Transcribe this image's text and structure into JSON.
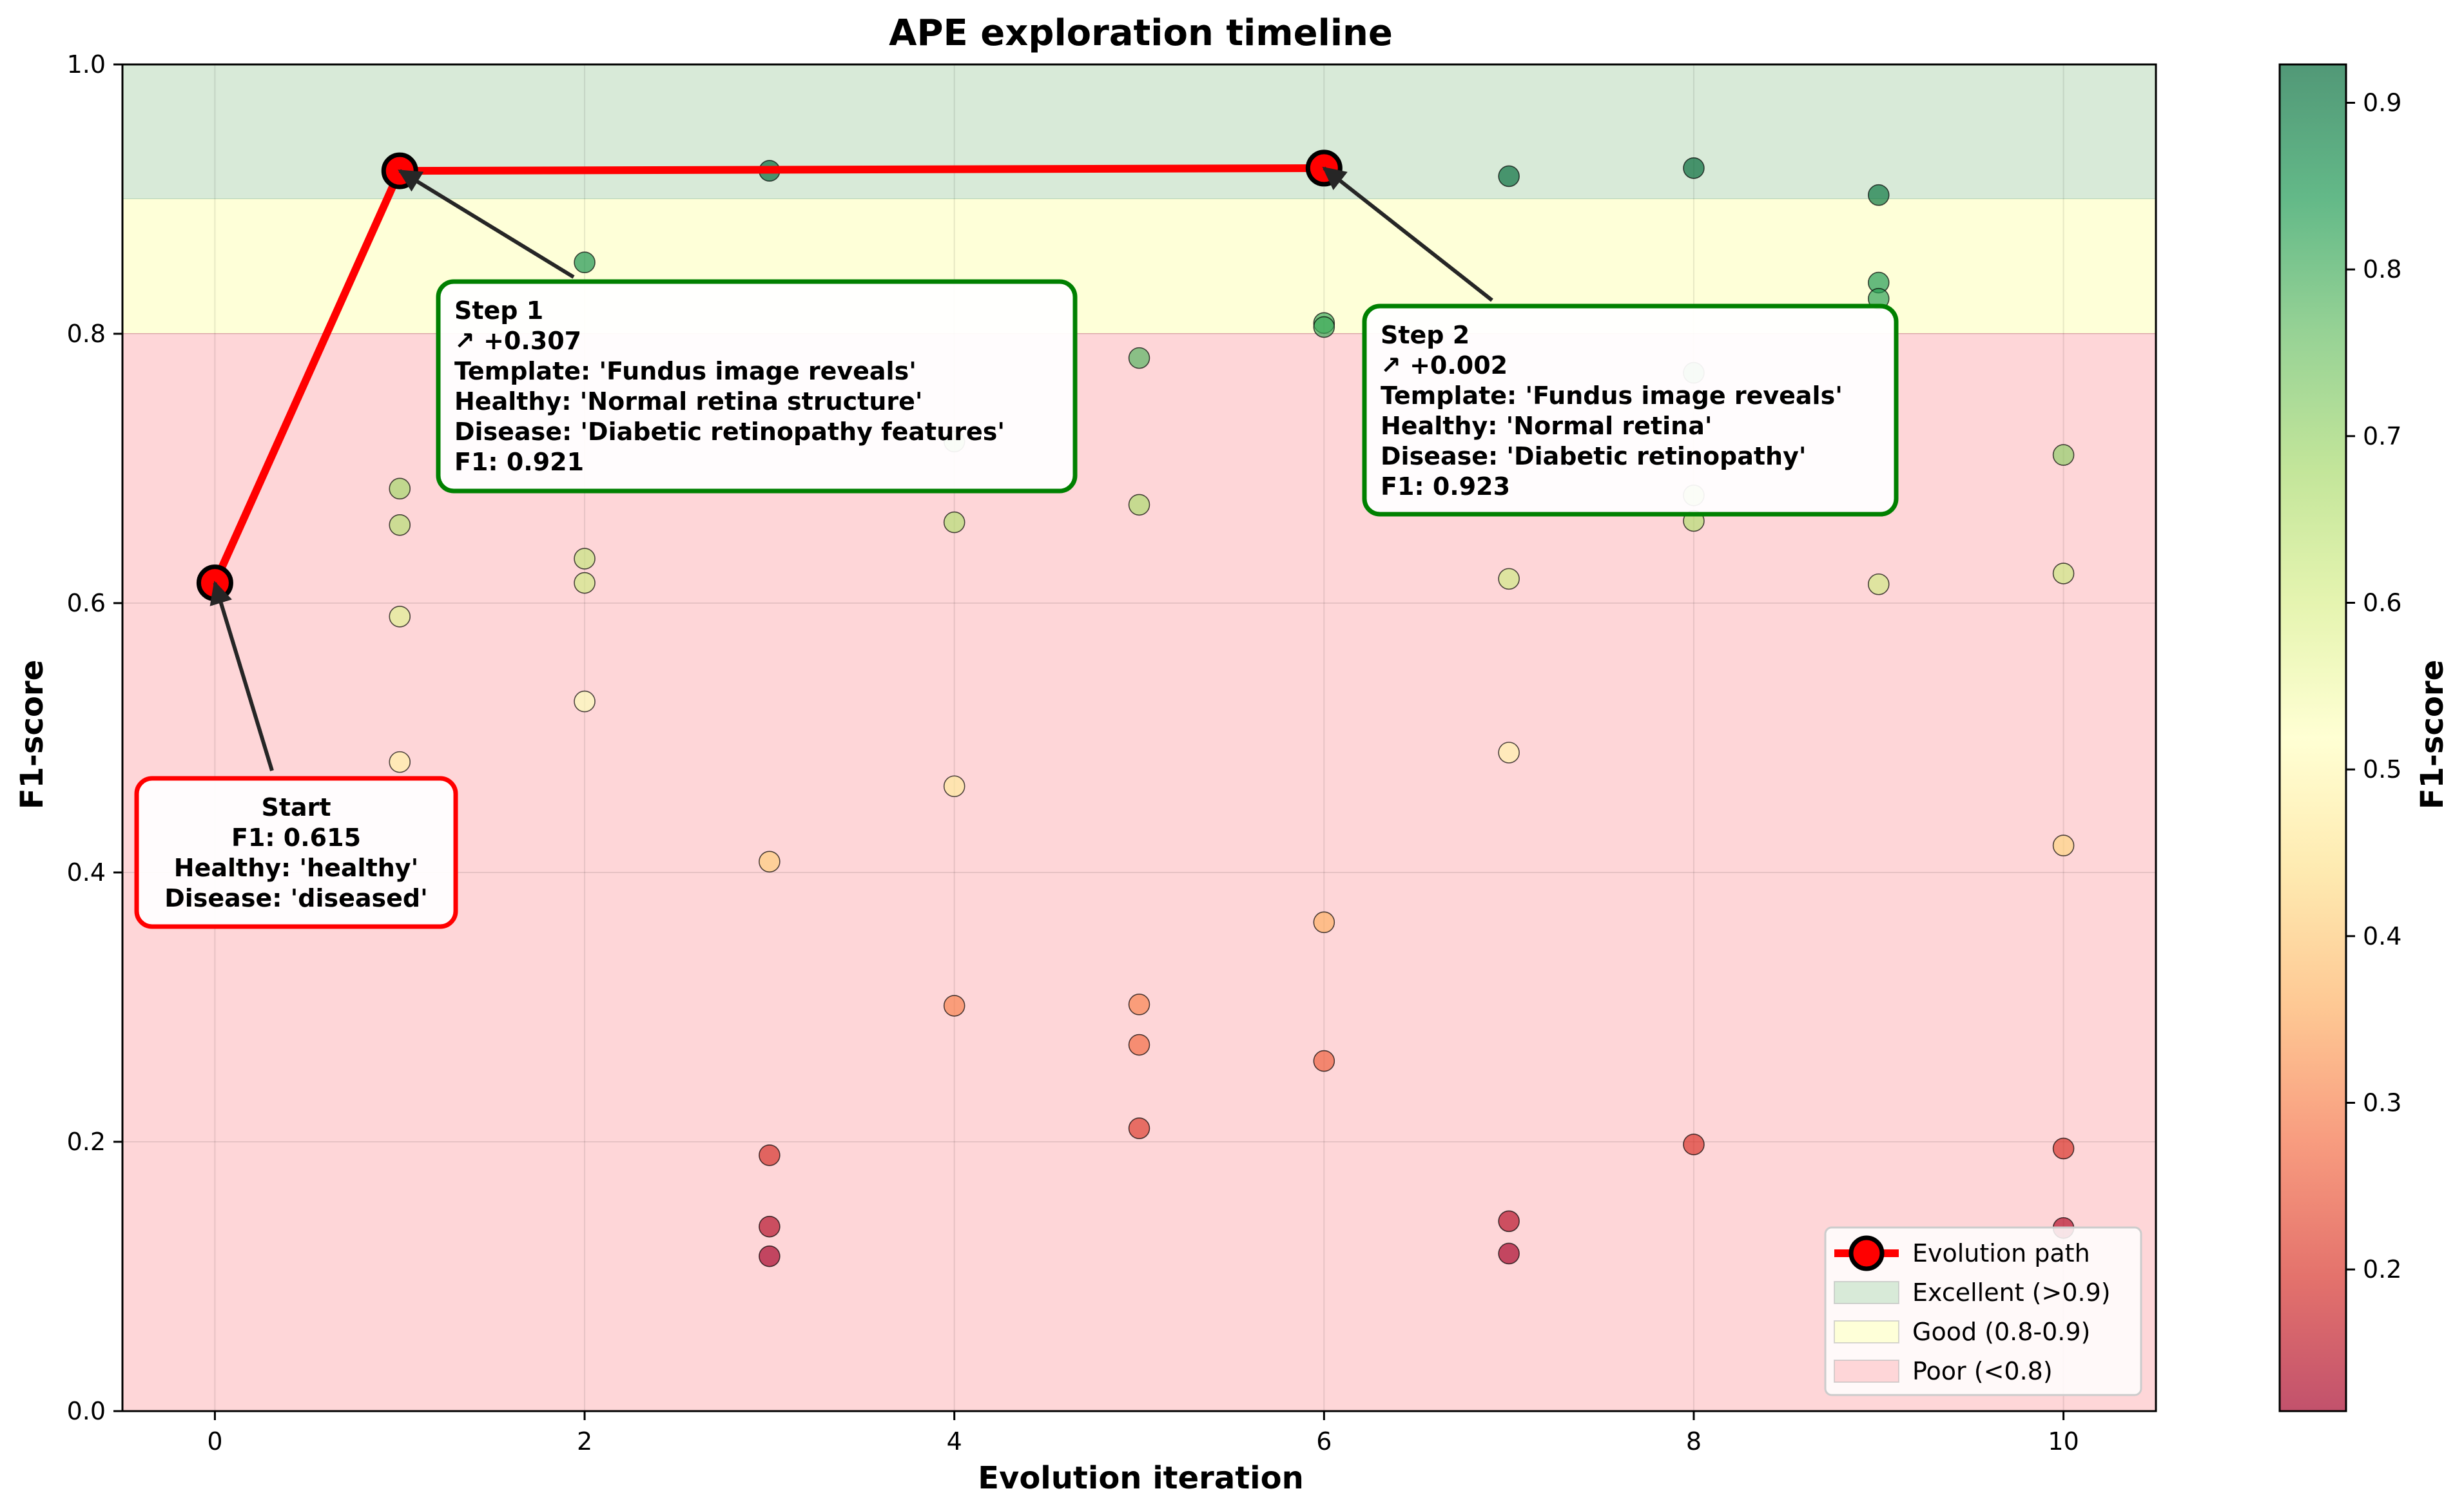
{
  "chart_data": {
    "type": "scatter",
    "title": "APE exploration timeline",
    "xlabel": "Evolution iteration",
    "ylabel": "F1-score",
    "xlim": [
      -0.5,
      10.5
    ],
    "ylim": [
      0.0,
      1.0
    ],
    "xticks": [
      "0",
      "2",
      "4",
      "6",
      "8",
      "10"
    ],
    "yticks": [
      "0.0",
      "0.2",
      "0.4",
      "0.6",
      "0.8",
      "1.0"
    ],
    "grid": true,
    "colormap": [
      "#a50026",
      "#d73027",
      "#f46d43",
      "#fdae61",
      "#fee08b",
      "#ffffbf",
      "#d9ef8b",
      "#a6d96a",
      "#66bd63",
      "#1a9850",
      "#006837"
    ],
    "colorbar": {
      "label": "F1-score",
      "range": [
        0.115,
        0.923
      ],
      "ticks": [
        "0.2",
        "0.3",
        "0.4",
        "0.5",
        "0.6",
        "0.7",
        "0.8",
        "0.9"
      ]
    },
    "bands": [
      {
        "name": "Excellent (>0.9)",
        "from": 0.9,
        "to": 1.0,
        "color": "#d8ead8"
      },
      {
        "name": "Good (0.8-0.9)",
        "from": 0.8,
        "to": 0.9,
        "color": "#feffd8"
      },
      {
        "name": "Poor (<0.8)",
        "from": 0.0,
        "to": 0.8,
        "color": "#fed6d8"
      }
    ],
    "points": [
      {
        "x": 0,
        "y": 0.615
      },
      {
        "x": 1,
        "y": 0.921
      },
      {
        "x": 1,
        "y": 0.685
      },
      {
        "x": 1,
        "y": 0.658
      },
      {
        "x": 1,
        "y": 0.59
      },
      {
        "x": 1,
        "y": 0.482
      },
      {
        "x": 2,
        "y": 0.853
      },
      {
        "x": 2,
        "y": 0.633
      },
      {
        "x": 2,
        "y": 0.615
      },
      {
        "x": 2,
        "y": 0.527
      },
      {
        "x": 3,
        "y": 0.921
      },
      {
        "x": 3,
        "y": 0.408
      },
      {
        "x": 3,
        "y": 0.19
      },
      {
        "x": 3,
        "y": 0.137
      },
      {
        "x": 3,
        "y": 0.115
      },
      {
        "x": 4,
        "y": 0.72
      },
      {
        "x": 4,
        "y": 0.66
      },
      {
        "x": 4,
        "y": 0.464
      },
      {
        "x": 4,
        "y": 0.301
      },
      {
        "x": 5,
        "y": 0.782
      },
      {
        "x": 5,
        "y": 0.673
      },
      {
        "x": 5,
        "y": 0.302
      },
      {
        "x": 5,
        "y": 0.272
      },
      {
        "x": 5,
        "y": 0.21
      },
      {
        "x": 6,
        "y": 0.923
      },
      {
        "x": 6,
        "y": 0.808
      },
      {
        "x": 6,
        "y": 0.805
      },
      {
        "x": 6,
        "y": 0.363
      },
      {
        "x": 6,
        "y": 0.26
      },
      {
        "x": 7,
        "y": 0.917
      },
      {
        "x": 7,
        "y": 0.618
      },
      {
        "x": 7,
        "y": 0.489
      },
      {
        "x": 7,
        "y": 0.141
      },
      {
        "x": 7,
        "y": 0.117
      },
      {
        "x": 8,
        "y": 0.923
      },
      {
        "x": 8,
        "y": 0.771
      },
      {
        "x": 8,
        "y": 0.68
      },
      {
        "x": 8,
        "y": 0.661
      },
      {
        "x": 8,
        "y": 0.198
      },
      {
        "x": 9,
        "y": 0.903
      },
      {
        "x": 9,
        "y": 0.838
      },
      {
        "x": 9,
        "y": 0.826
      },
      {
        "x": 9,
        "y": 0.614
      },
      {
        "x": 10,
        "y": 0.71
      },
      {
        "x": 10,
        "y": 0.622
      },
      {
        "x": 10,
        "y": 0.42
      },
      {
        "x": 10,
        "y": 0.195
      },
      {
        "x": 10,
        "y": 0.136
      }
    ],
    "evolution_path": {
      "name": "Evolution path",
      "color": "#ff0000",
      "points": [
        {
          "x": 0,
          "y": 0.615
        },
        {
          "x": 1,
          "y": 0.921
        },
        {
          "x": 6,
          "y": 0.923
        }
      ]
    },
    "annotations": [
      {
        "target": {
          "x": 0,
          "y": 0.615
        },
        "border": "#ff0000",
        "align": "center",
        "lines": [
          "Start",
          "F1: 0.615",
          "Healthy: 'healthy'",
          "Disease: 'diseased'"
        ]
      },
      {
        "target": {
          "x": 1,
          "y": 0.921
        },
        "border": "#008000",
        "align": "left",
        "lines": [
          "Step 1",
          "↗ +0.307",
          "Template: 'Fundus image reveals'",
          "Healthy: 'Normal retina structure'",
          "Disease: 'Diabetic retinopathy features'",
          "F1: 0.921"
        ]
      },
      {
        "target": {
          "x": 6,
          "y": 0.923
        },
        "border": "#008000",
        "align": "left",
        "lines": [
          "Step 2",
          "↗ +0.002",
          "Template: 'Fundus image reveals'",
          "Healthy: 'Normal retina'",
          "Disease: 'Diabetic retinopathy'",
          "F1: 0.923"
        ]
      }
    ],
    "legend": {
      "placement": "lower-right",
      "items": [
        "Evolution path",
        "Excellent (>0.9)",
        "Good (0.8-0.9)",
        "Poor (<0.8)"
      ]
    }
  }
}
